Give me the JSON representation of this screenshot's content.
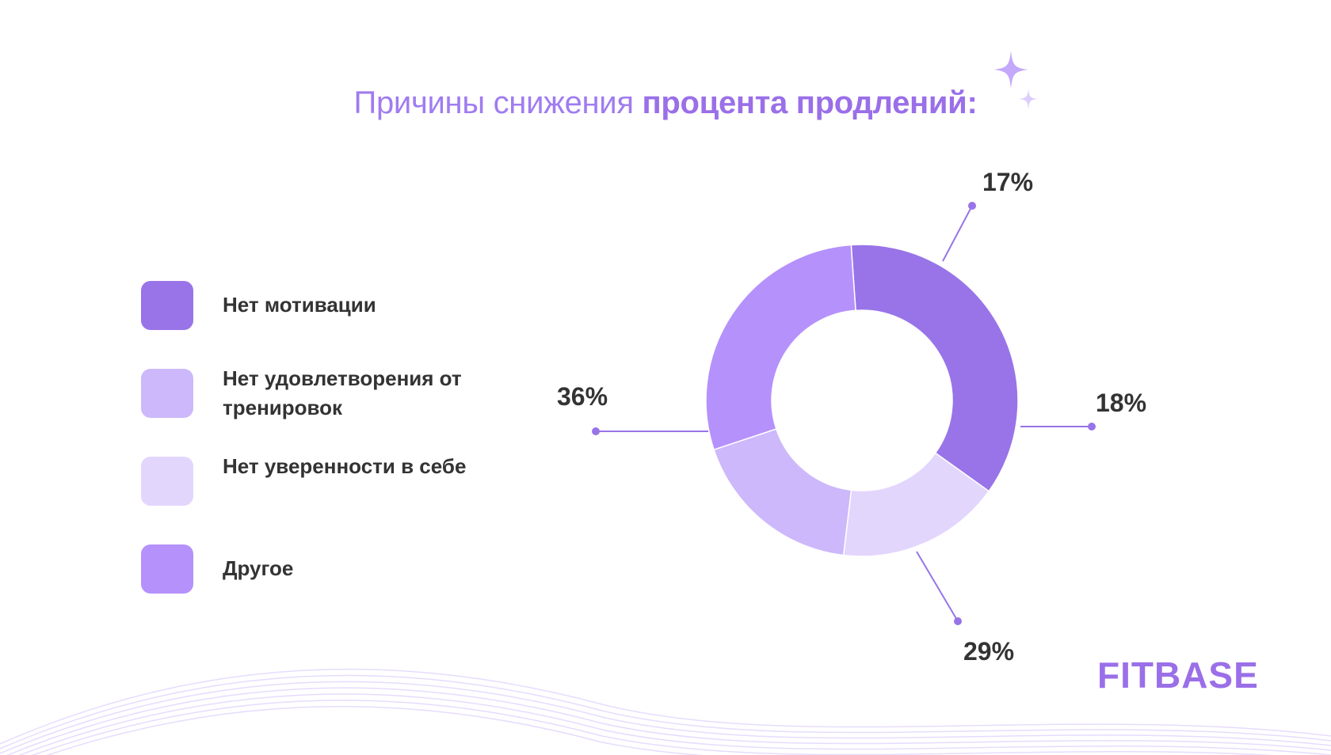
{
  "title": {
    "regular": "Причины снижения ",
    "bold": "процента продлений:"
  },
  "legend": [
    {
      "label": "Нет мотивации",
      "color": "#9874e8"
    },
    {
      "label": "Нет удовлетворения от тренировок",
      "color": "#cdb8fb"
    },
    {
      "label": "Нет уверенности в себе",
      "color": "#e3d6fd"
    },
    {
      "label": "Другое",
      "color": "#b591fc"
    }
  ],
  "chart_data": {
    "type": "pie",
    "variant": "donut",
    "slices": [
      {
        "name": "Нет мотивации",
        "value": 36,
        "label": "36%",
        "color": "#9874e8"
      },
      {
        "name": "Нет уверенности в себе",
        "value": 17,
        "label": "17%",
        "color": "#e3d6fd"
      },
      {
        "name": "Нет удовлетворения от тренировок",
        "value": 18,
        "label": "18%",
        "color": "#cdb8fb"
      },
      {
        "name": "Другое",
        "value": 29,
        "label": "29%",
        "color": "#b591fc"
      }
    ],
    "leader_color": "#9874e8"
  },
  "logo": "FITBASE",
  "icons": {
    "sparkle": "sparkle-icon"
  }
}
